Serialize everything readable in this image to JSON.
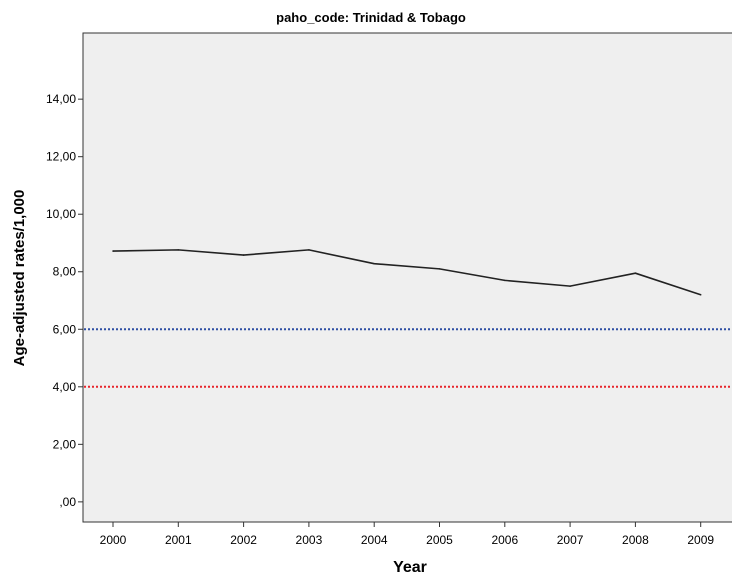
{
  "chart_data": {
    "type": "line",
    "title": "paho_code: Trinidad & Tobago",
    "xlabel": "Year",
    "ylabel": "Age-adjusted rates/1,000",
    "categories": [
      "2000",
      "2001",
      "2002",
      "2003",
      "2004",
      "2005",
      "2006",
      "2007",
      "2008",
      "2009"
    ],
    "series": [
      {
        "values": [
          8.72,
          8.76,
          8.58,
          8.76,
          8.28,
          8.1,
          7.7,
          7.5,
          7.95,
          7.2
        ]
      }
    ],
    "ylim": [
      -0.7,
      16.3
    ],
    "yticks": [
      0,
      2,
      4,
      6,
      8,
      10,
      12,
      14
    ],
    "ytick_labels": [
      ",00",
      "2,00",
      "4,00",
      "6,00",
      "8,00",
      "10,00",
      "12,00",
      "14,00"
    ],
    "reference_lines": [
      {
        "value": 6,
        "color": "#2e4fa3",
        "style": "dotted"
      },
      {
        "value": 4,
        "color": "#e8252b",
        "style": "dotted"
      }
    ],
    "line_color": "#222222",
    "plot_background": "#efefef",
    "grid": false,
    "legend": "none"
  }
}
